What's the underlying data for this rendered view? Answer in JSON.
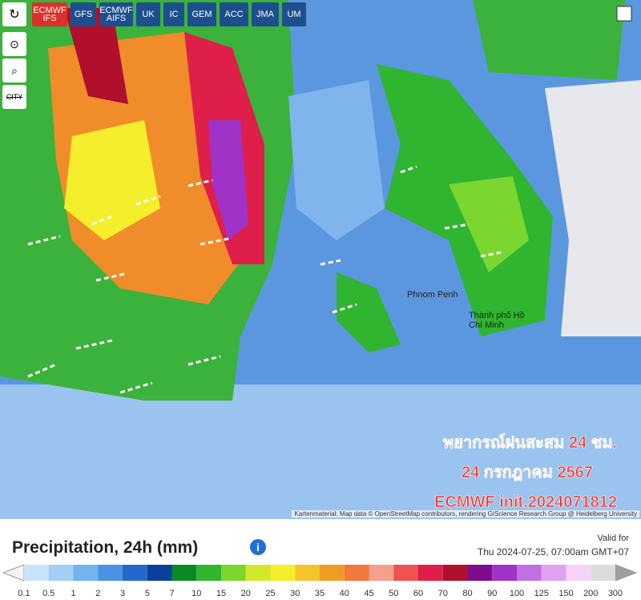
{
  "toolbar": {
    "tabs": [
      {
        "label": "ECMWF IFS",
        "active": true
      },
      {
        "label": "GFS",
        "active": false
      },
      {
        "label": "ECMWF AIFS",
        "active": false
      },
      {
        "label": "UK",
        "active": false
      },
      {
        "label": "IC",
        "active": false
      },
      {
        "label": "GEM",
        "active": false
      },
      {
        "label": "ACC",
        "active": false
      },
      {
        "label": "JMA",
        "active": false
      },
      {
        "label": "UM",
        "active": false
      }
    ],
    "city_button": "CITY"
  },
  "map": {
    "places": [
      "Phnom Penh",
      "Thành phố Hồ Chí Minh"
    ],
    "overlay": [
      "พยากรณ์ฝนสะสม 24 ชม.",
      "24 กรกฎาคม 2567",
      "ECMWF init.2024071812"
    ],
    "attribution": "Kartenmaterial: Map data © OpenStreetMap contributors, rendering GIScience Research Group @ Heidelberg University"
  },
  "footer": {
    "title": "Precipitation, 24h (mm)",
    "info": "i",
    "valid_label": "Valid for",
    "valid_time": "Thu 2024-07-25, 07:00am GMT+07"
  },
  "legend": {
    "labels": [
      "0.1",
      "0.5",
      "1",
      "2",
      "3",
      "5",
      "7",
      "10",
      "15",
      "20",
      "25",
      "30",
      "35",
      "40",
      "45",
      "50",
      "60",
      "70",
      "80",
      "90",
      "100",
      "125",
      "150",
      "200",
      "300"
    ],
    "colors": [
      "#c8e2fa",
      "#a2cff5",
      "#72b4ee",
      "#4a93e2",
      "#2468cc",
      "#0c3f9c",
      "#0b8a22",
      "#2fb52f",
      "#7bd630",
      "#d2e82c",
      "#f4ee2c",
      "#f5c42c",
      "#f09c22",
      "#f0783a",
      "#f5a08e",
      "#f05252",
      "#de1f4a",
      "#b0102c",
      "#7e0c8c",
      "#a032c8",
      "#c070e0",
      "#e0a2f0",
      "#f6d2f8",
      "#dcdcdc"
    ],
    "under_color": "#f4f4f4",
    "over_color": "#a0a0a0"
  }
}
